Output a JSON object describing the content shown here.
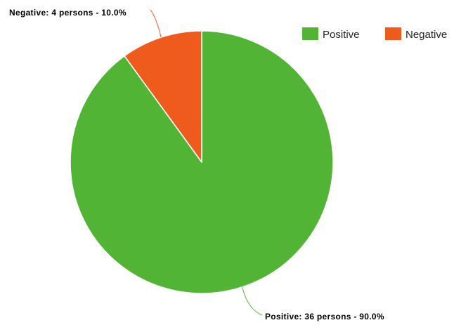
{
  "chart_data": {
    "type": "pie",
    "title": "",
    "categories": [
      "Positive",
      "Negative"
    ],
    "values": [
      36,
      4
    ],
    "percentages": [
      90.0,
      10.0
    ],
    "colors": [
      "#52b435",
      "#ef5a1d"
    ],
    "slice_labels": [
      "Positive: 36 persons - 90.0%",
      "Negative: 4 persons - 10.0%"
    ],
    "legend": {
      "placement": "top-right",
      "items": [
        "Positive",
        "Negative"
      ]
    }
  }
}
